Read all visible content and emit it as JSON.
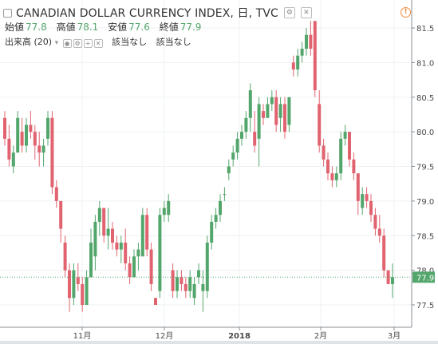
{
  "header": {
    "title": "CANADIAN DOLLAR CURRENCY INDEX, 日, TVC",
    "ohlc": [
      {
        "label": "始値",
        "value": "77.8"
      },
      {
        "label": "高値",
        "value": "78.1"
      },
      {
        "label": "安値",
        "value": "77.6"
      },
      {
        "label": "終値",
        "value": "77.9"
      }
    ],
    "volume_label": "出来高 (20)",
    "volume_values": [
      "該当なし",
      "該当なし"
    ],
    "icons": [
      "settings-icon",
      "close-icon",
      "warning-icon"
    ]
  },
  "chart_data": {
    "type": "candlestick",
    "title": "CANADIAN DOLLAR CURRENCY INDEX, 日, TVC",
    "xlabel": "",
    "ylabel": "",
    "ylim": [
      77.1,
      81.7
    ],
    "yticks": [
      "81.5",
      "81.0",
      "80.5",
      "80.0",
      "79.5",
      "79.0",
      "78.5",
      "78.0",
      "77.5"
    ],
    "xticks": [
      "11月",
      "12月",
      "2018",
      "2月",
      "3月"
    ],
    "last_price": "77.9",
    "colors": {
      "up": "#53a66b",
      "down": "#e0636f",
      "price_line": "#53a66b"
    },
    "grid": true,
    "candles": [
      [
        80.2,
        80.3,
        79.8,
        79.9
      ],
      [
        79.9,
        80.1,
        79.5,
        79.6
      ],
      [
        79.5,
        79.8,
        79.4,
        79.7
      ],
      [
        79.7,
        80.3,
        79.7,
        80.2
      ],
      [
        80.0,
        80.2,
        79.7,
        79.8
      ],
      [
        79.8,
        80.2,
        79.7,
        80.1
      ],
      [
        80.1,
        80.3,
        79.9,
        80.0
      ],
      [
        80.0,
        80.1,
        79.6,
        79.8
      ],
      [
        79.8,
        80.0,
        79.5,
        79.7
      ],
      [
        79.7,
        79.9,
        79.5,
        79.8
      ],
      [
        79.9,
        80.3,
        79.8,
        80.2
      ],
      [
        80.2,
        80.3,
        79.1,
        79.2
      ],
      [
        79.2,
        79.3,
        78.9,
        79.0
      ],
      [
        79.0,
        79.0,
        78.4,
        78.6
      ],
      [
        78.4,
        78.5,
        77.9,
        78.0
      ],
      [
        78.0,
        78.1,
        77.4,
        77.6
      ],
      [
        77.6,
        78.1,
        77.5,
        78.0
      ],
      [
        77.9,
        78.1,
        77.7,
        77.8
      ],
      [
        77.8,
        77.9,
        77.4,
        77.5
      ],
      [
        77.5,
        78.0,
        77.5,
        77.9
      ],
      [
        77.9,
        78.6,
        77.9,
        78.4
      ],
      [
        78.2,
        78.8,
        78.0,
        78.7
      ],
      [
        78.7,
        79.0,
        78.5,
        78.9
      ],
      [
        78.9,
        78.9,
        78.4,
        78.5
      ],
      [
        78.5,
        78.9,
        78.3,
        78.6
      ],
      [
        78.6,
        78.7,
        78.3,
        78.4
      ],
      [
        78.4,
        78.5,
        78.2,
        78.3
      ],
      [
        78.3,
        78.5,
        78.1,
        78.4
      ],
      [
        78.4,
        78.6,
        78.0,
        78.1
      ],
      [
        78.1,
        78.2,
        77.8,
        77.9
      ],
      [
        77.9,
        78.3,
        77.9,
        78.2
      ],
      [
        78.2,
        78.4,
        78.0,
        78.3
      ],
      [
        78.2,
        78.9,
        78.2,
        78.8
      ],
      [
        78.8,
        78.9,
        78.2,
        78.3
      ],
      [
        78.3,
        78.4,
        77.7,
        77.8
      ],
      [
        77.6,
        77.6,
        77.5,
        77.5
      ],
      [
        77.7,
        78.9,
        77.6,
        78.8
      ],
      [
        78.8,
        79.0,
        78.7,
        78.9
      ],
      [
        78.8,
        79.1,
        78.7,
        79.0
      ],
      [
        78.0,
        78.1,
        77.6,
        77.7
      ],
      [
        77.7,
        78.0,
        77.6,
        77.9
      ],
      [
        77.9,
        78.0,
        77.7,
        77.8
      ],
      [
        77.8,
        77.9,
        77.6,
        77.7
      ],
      [
        77.7,
        78.0,
        77.6,
        77.9
      ],
      [
        77.6,
        77.9,
        77.5,
        77.8
      ],
      [
        77.9,
        78.1,
        77.8,
        78.0
      ],
      [
        77.7,
        78.0,
        77.4,
        77.8
      ],
      [
        77.7,
        78.5,
        77.6,
        78.4
      ],
      [
        78.4,
        78.8,
        78.3,
        78.7
      ],
      [
        78.7,
        78.9,
        78.6,
        78.8
      ],
      [
        78.8,
        79.1,
        78.7,
        79.0
      ],
      [
        79.1,
        79.2,
        79.0,
        79.1
      ],
      [
        79.4,
        79.6,
        79.3,
        79.5
      ],
      [
        79.6,
        79.8,
        79.5,
        79.7
      ],
      [
        79.7,
        80.0,
        79.6,
        79.9
      ],
      [
        79.9,
        80.1,
        79.8,
        80.0
      ],
      [
        80.0,
        80.3,
        79.9,
        80.2
      ],
      [
        80.2,
        80.7,
        80.0,
        80.6
      ],
      [
        80.0,
        80.3,
        79.7,
        79.8
      ],
      [
        79.9,
        80.5,
        79.5,
        80.4
      ],
      [
        80.3,
        80.4,
        80.1,
        80.2
      ],
      [
        80.2,
        80.5,
        80.2,
        80.4
      ],
      [
        80.4,
        80.6,
        80.3,
        80.5
      ],
      [
        80.5,
        80.6,
        80.0,
        80.1
      ],
      [
        80.2,
        80.5,
        80.0,
        80.4
      ],
      [
        80.4,
        80.5,
        79.9,
        80.0
      ],
      [
        80.1,
        80.5,
        80.0,
        80.5
      ],
      [
        81.0,
        81.1,
        80.8,
        80.9
      ],
      [
        80.9,
        81.2,
        80.8,
        81.1
      ],
      [
        81.1,
        81.3,
        81.0,
        81.2
      ],
      [
        81.2,
        81.5,
        81.1,
        81.4
      ],
      [
        81.4,
        81.6,
        81.1,
        81.2
      ],
      [
        81.6,
        81.6,
        80.5,
        80.6
      ],
      [
        80.4,
        80.6,
        79.7,
        79.8
      ],
      [
        79.8,
        79.9,
        79.5,
        79.6
      ],
      [
        79.6,
        79.7,
        79.3,
        79.4
      ],
      [
        79.4,
        79.5,
        79.2,
        79.3
      ],
      [
        79.3,
        79.5,
        79.2,
        79.4
      ],
      [
        79.4,
        80.0,
        79.3,
        79.9
      ],
      [
        79.9,
        80.1,
        79.8,
        80.0
      ],
      [
        80.0,
        80.0,
        79.5,
        79.6
      ],
      [
        79.6,
        79.7,
        79.3,
        79.4
      ],
      [
        79.4,
        79.4,
        78.8,
        79.0
      ],
      [
        78.9,
        79.2,
        78.8,
        79.1
      ],
      [
        79.1,
        79.2,
        78.9,
        79.0
      ],
      [
        79.0,
        79.1,
        78.7,
        78.8
      ],
      [
        78.8,
        78.9,
        78.5,
        78.6
      ],
      [
        78.6,
        78.8,
        78.4,
        78.5
      ],
      [
        78.5,
        78.6,
        77.9,
        78.0
      ],
      [
        78.0,
        78.0,
        77.8,
        77.8
      ],
      [
        77.8,
        78.1,
        77.6,
        77.9
      ]
    ]
  }
}
